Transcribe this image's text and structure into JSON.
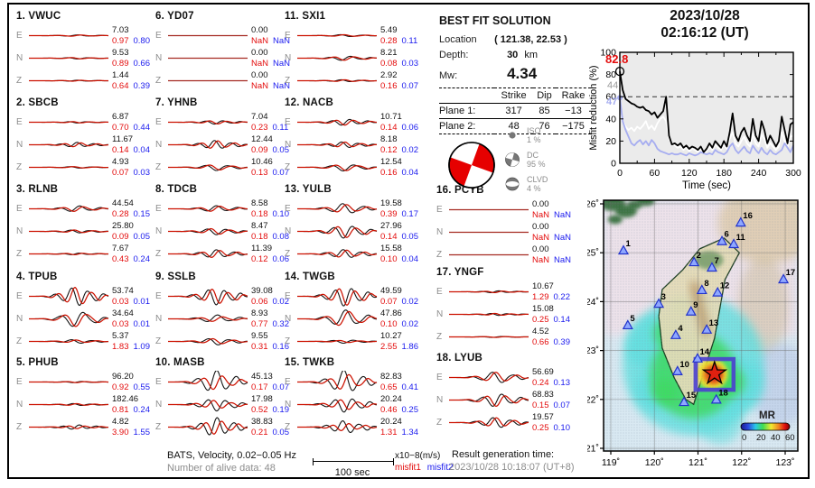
{
  "header": {
    "date": "2023/10/28",
    "time": "02:16:12  (UT)"
  },
  "solution": {
    "title": "BEST FIT SOLUTION",
    "location_label": "Location",
    "location_value": "( 121.38,  22.53 )",
    "depth_label": "Depth:",
    "depth_value": "30",
    "depth_unit": "km",
    "mw_label": "Mw:",
    "mw_value": "4.34",
    "table": {
      "headers": [
        "Strike",
        "Dip",
        "Rake"
      ],
      "rows": [
        {
          "label": "Plane 1:",
          "strike": "317",
          "dip": "85",
          "rake": "−13"
        },
        {
          "label": "Plane 2:",
          "strike": "48",
          "dip": "76",
          "rake": "−175"
        }
      ]
    },
    "decomposition": [
      {
        "name": "ISO",
        "pct": "1 %"
      },
      {
        "name": "DC",
        "pct": "95 %"
      },
      {
        "name": "CLVD",
        "pct": "4 %"
      }
    ]
  },
  "stations": [
    {
      "num": "1.",
      "code": "VWUC",
      "components": [
        {
          "c": "E",
          "peak": "7.03",
          "m1": "0.97",
          "m2": "0.80",
          "amp": 0.07,
          "mis": 0.1
        },
        {
          "c": "N",
          "peak": "9.53",
          "m1": "0.89",
          "m2": "0.66",
          "amp": 0.07,
          "mis": 0.1
        },
        {
          "c": "Z",
          "peak": "1.44",
          "m1": "0.64",
          "m2": "0.39",
          "amp": 0.05,
          "mis": 0.1
        }
      ]
    },
    {
      "num": "2.",
      "code": "SBCB",
      "components": [
        {
          "c": "E",
          "peak": "6.87",
          "m1": "0.70",
          "m2": "0.44",
          "amp": 0.07,
          "mis": 0.1
        },
        {
          "c": "N",
          "peak": "11.67",
          "m1": "0.14",
          "m2": "0.04",
          "amp": 0.22,
          "mis": 0.15
        },
        {
          "c": "Z",
          "peak": "4.93",
          "m1": "0.07",
          "m2": "0.03",
          "amp": 0.08,
          "mis": 0.1
        }
      ]
    },
    {
      "num": "3.",
      "code": "RLNB",
      "components": [
        {
          "c": "E",
          "peak": "44.54",
          "m1": "0.28",
          "m2": "0.15",
          "amp": 0.28,
          "mis": 0.15
        },
        {
          "c": "N",
          "peak": "25.80",
          "m1": "0.09",
          "m2": "0.05",
          "amp": 0.15,
          "mis": 0.1
        },
        {
          "c": "Z",
          "peak": "7.67",
          "m1": "0.43",
          "m2": "0.24",
          "amp": 0.08,
          "mis": 0.1
        }
      ]
    },
    {
      "num": "4.",
      "code": "TPUB",
      "components": [
        {
          "c": "E",
          "peak": "53.74",
          "m1": "0.03",
          "m2": "0.01",
          "amp": 0.95,
          "mis": 0.05
        },
        {
          "c": "N",
          "peak": "34.64",
          "m1": "0.03",
          "m2": "0.01",
          "amp": 0.8,
          "mis": 0.08
        },
        {
          "c": "Z",
          "peak": "5.37",
          "m1": "1.83",
          "m2": "1.09",
          "amp": 0.15,
          "mis": 0.4
        }
      ]
    },
    {
      "num": "5.",
      "code": "PHUB",
      "components": [
        {
          "c": "E",
          "peak": "96.20",
          "m1": "0.92",
          "m2": "0.55",
          "amp": 0.06,
          "mis": 0.1
        },
        {
          "c": "N",
          "peak": "182.46",
          "m1": "0.81",
          "m2": "0.24",
          "amp": 0.1,
          "mis": 0.1
        },
        {
          "c": "Z",
          "peak": "4.82",
          "m1": "3.90",
          "m2": "1.55",
          "amp": 0.16,
          "mis": 0.5
        }
      ]
    },
    {
      "num": "6.",
      "code": "YD07",
      "components": [
        {
          "c": "E",
          "peak": "0.00",
          "m1": "NaN",
          "m2": "NaN",
          "amp": 0,
          "mis": 0
        },
        {
          "c": "N",
          "peak": "0.00",
          "m1": "NaN",
          "m2": "NaN",
          "amp": 0,
          "mis": 0
        },
        {
          "c": "Z",
          "peak": "0.00",
          "m1": "NaN",
          "m2": "NaN",
          "amp": 0,
          "mis": 0
        }
      ]
    },
    {
      "num": "7.",
      "code": "YHNB",
      "components": [
        {
          "c": "E",
          "peak": "7.04",
          "m1": "0.23",
          "m2": "0.11",
          "amp": 0.18,
          "mis": 0.1
        },
        {
          "c": "N",
          "peak": "12.44",
          "m1": "0.09",
          "m2": "0.05",
          "amp": 0.42,
          "mis": 0.08
        },
        {
          "c": "Z",
          "peak": "10.46",
          "m1": "0.13",
          "m2": "0.07",
          "amp": 0.3,
          "mis": 0.12
        }
      ]
    },
    {
      "num": "8.",
      "code": "TDCB",
      "components": [
        {
          "c": "E",
          "peak": "8.58",
          "m1": "0.18",
          "m2": "0.10",
          "amp": 0.3,
          "mis": 0.1
        },
        {
          "c": "N",
          "peak": "8.47",
          "m1": "0.18",
          "m2": "0.08",
          "amp": 0.32,
          "mis": 0.1
        },
        {
          "c": "Z",
          "peak": "11.39",
          "m1": "0.12",
          "m2": "0.06",
          "amp": 0.4,
          "mis": 0.1
        }
      ]
    },
    {
      "num": "9.",
      "code": "SSLB",
      "components": [
        {
          "c": "E",
          "peak": "39.08",
          "m1": "0.06",
          "m2": "0.02",
          "amp": 0.8,
          "mis": 0.12
        },
        {
          "c": "N",
          "peak": "8.93",
          "m1": "0.77",
          "m2": "0.32",
          "amp": 0.28,
          "mis": 0.5
        },
        {
          "c": "Z",
          "peak": "9.55",
          "m1": "0.31",
          "m2": "0.16",
          "amp": 0.3,
          "mis": 0.25
        }
      ]
    },
    {
      "num": "10.",
      "code": "MASB",
      "components": [
        {
          "c": "E",
          "peak": "45.13",
          "m1": "0.17",
          "m2": "0.07",
          "amp": 0.8,
          "mis": 0.55
        },
        {
          "c": "N",
          "peak": "17.98",
          "m1": "0.52",
          "m2": "0.19",
          "amp": 0.45,
          "mis": 0.5
        },
        {
          "c": "Z",
          "peak": "38.83",
          "m1": "0.21",
          "m2": "0.05",
          "amp": 0.75,
          "mis": 0.35
        }
      ]
    },
    {
      "num": "11.",
      "code": "SXI1",
      "components": [
        {
          "c": "E",
          "peak": "5.49",
          "m1": "0.28",
          "m2": "0.11",
          "amp": 0.1,
          "mis": 0.15
        },
        {
          "c": "N",
          "peak": "8.21",
          "m1": "0.08",
          "m2": "0.03",
          "amp": 0.22,
          "mis": 0.1
        },
        {
          "c": "Z",
          "peak": "2.92",
          "m1": "0.16",
          "m2": "0.07",
          "amp": 0.1,
          "mis": 0.1
        }
      ]
    },
    {
      "num": "12.",
      "code": "NACB",
      "components": [
        {
          "c": "E",
          "peak": "10.71",
          "m1": "0.14",
          "m2": "0.06",
          "amp": 0.3,
          "mis": 0.1
        },
        {
          "c": "N",
          "peak": "8.18",
          "m1": "0.12",
          "m2": "0.02",
          "amp": 0.28,
          "mis": 0.1
        },
        {
          "c": "Z",
          "peak": "12.54",
          "m1": "0.16",
          "m2": "0.04",
          "amp": 0.35,
          "mis": 0.1
        }
      ]
    },
    {
      "num": "13.",
      "code": "YULB",
      "components": [
        {
          "c": "E",
          "peak": "19.58",
          "m1": "0.39",
          "m2": "0.17",
          "amp": 0.45,
          "mis": 0.25
        },
        {
          "c": "N",
          "peak": "27.96",
          "m1": "0.14",
          "m2": "0.05",
          "amp": 0.65,
          "mis": 0.1
        },
        {
          "c": "Z",
          "peak": "15.58",
          "m1": "0.10",
          "m2": "0.04",
          "amp": 0.4,
          "mis": 0.15
        }
      ]
    },
    {
      "num": "14.",
      "code": "TWGB",
      "components": [
        {
          "c": "E",
          "peak": "49.59",
          "m1": "0.07",
          "m2": "0.02",
          "amp": 0.95,
          "mis": 0.08
        },
        {
          "c": "N",
          "peak": "47.86",
          "m1": "0.10",
          "m2": "0.02",
          "amp": 0.85,
          "mis": 0.1
        },
        {
          "c": "Z",
          "peak": "10.27",
          "m1": "2.55",
          "m2": "1.86",
          "amp": 0.12,
          "mis": 0.6
        }
      ]
    },
    {
      "num": "15.",
      "code": "TWKB",
      "components": [
        {
          "c": "E",
          "peak": "82.83",
          "m1": "0.65",
          "m2": "0.41",
          "amp": 0.85,
          "mis": 0.5
        },
        {
          "c": "N",
          "peak": "20.24",
          "m1": "0.46",
          "m2": "0.25",
          "amp": 0.55,
          "mis": 0.45
        },
        {
          "c": "Z",
          "peak": "20.24",
          "m1": "1.31",
          "m2": "1.34",
          "amp": 0.4,
          "mis": 0.7
        }
      ]
    },
    {
      "num": "16.",
      "code": "PCYB",
      "components": [
        {
          "c": "E",
          "peak": "0.00",
          "m1": "NaN",
          "m2": "NaN",
          "amp": 0,
          "mis": 0
        },
        {
          "c": "N",
          "peak": "0.00",
          "m1": "NaN",
          "m2": "NaN",
          "amp": 0,
          "mis": 0
        },
        {
          "c": "Z",
          "peak": "0.00",
          "m1": "NaN",
          "m2": "NaN",
          "amp": 0,
          "mis": 0
        }
      ]
    },
    {
      "num": "17.",
      "code": "YNGF",
      "components": [
        {
          "c": "E",
          "peak": "10.67",
          "m1": "1.29",
          "m2": "0.22",
          "amp": 0.09,
          "mis": 0.2
        },
        {
          "c": "N",
          "peak": "15.08",
          "m1": "0.25",
          "m2": "0.14",
          "amp": 0.1,
          "mis": 0.15
        },
        {
          "c": "Z",
          "peak": "4.52",
          "m1": "0.66",
          "m2": "0.39",
          "amp": 0.05,
          "mis": 0.15
        }
      ]
    },
    {
      "num": "18.",
      "code": "LYUB",
      "components": [
        {
          "c": "E",
          "peak": "56.69",
          "m1": "0.24",
          "m2": "0.13",
          "amp": 0.55,
          "mis": 0.12
        },
        {
          "c": "N",
          "peak": "68.83",
          "m1": "0.15",
          "m2": "0.07",
          "amp": 0.65,
          "mis": 0.1
        },
        {
          "c": "Z",
          "peak": "19.57",
          "m1": "0.25",
          "m2": "0.10",
          "amp": 0.5,
          "mis": 0.12
        }
      ]
    }
  ],
  "footer": {
    "filter_line": "BATS, Velocity, 0.02−0.05 Hz",
    "alive_line": "Number of alive data: 48",
    "scalebar_label": "100 sec",
    "unit_label": "x10−8(m/s)",
    "misfit1_label": "misfit1",
    "misfit2_label": "misfit2",
    "result_time_label": "Result generation time:",
    "result_time_value": "2023/10/28 10:18:07 (UT+8)"
  },
  "chart_data": [
    {
      "type": "line",
      "title": "Misfit reduction vs time",
      "xlabel": "Time (sec)",
      "ylabel": "Misfit reduction (%)",
      "xlim": [
        0,
        300
      ],
      "ylim": [
        0,
        100
      ],
      "x_ticks": [
        0,
        60,
        120,
        180,
        240,
        300
      ],
      "y_ticks": [
        0,
        20,
        40,
        60,
        80,
        100
      ],
      "dashed_line_y": 60,
      "x_step": 5,
      "annotations": [
        {
          "text": "82.8",
          "color": "#e30b0b"
        },
        {
          "text": "44",
          "color": "#9a9a9a"
        },
        {
          "text": "47",
          "color": "#a6adf0"
        }
      ],
      "series": [
        {
          "name": "white",
          "color": "#ffffff",
          "values": [
            44,
            38,
            33,
            30,
            32,
            29,
            33,
            31,
            34,
            38,
            31,
            34,
            30,
            36,
            40,
            42,
            38,
            22,
            18,
            16,
            14,
            15,
            12,
            14,
            11,
            13,
            12,
            10,
            13,
            9,
            11,
            15,
            12,
            17,
            14,
            12,
            17,
            13,
            22,
            28,
            18,
            15,
            20,
            24,
            18,
            15,
            26,
            18,
            15,
            26,
            22,
            14,
            18,
            15,
            12,
            15,
            28,
            20,
            14,
            24,
            25
          ]
        },
        {
          "name": "lavender",
          "color": "#a6adf0",
          "values": [
            59,
            38,
            30,
            24,
            18,
            16,
            19,
            21,
            17,
            20,
            16,
            21,
            18,
            13,
            11,
            10,
            9,
            8,
            9,
            8,
            8,
            9,
            8,
            7,
            9,
            8,
            7,
            8,
            10,
            9,
            8,
            9,
            8,
            12,
            10,
            9,
            8,
            10,
            15,
            18,
            12,
            9,
            12,
            15,
            11,
            9,
            16,
            12,
            9,
            14,
            10,
            8,
            12,
            9,
            8,
            10,
            12,
            18,
            14,
            10,
            16
          ]
        },
        {
          "name": "final",
          "color": "#000000",
          "values": [
            82.8,
            66,
            58,
            56,
            54,
            53,
            51,
            50,
            51,
            48,
            47,
            44,
            46,
            41,
            44,
            47,
            60,
            25,
            17,
            18,
            16,
            18,
            14,
            16,
            13,
            15,
            14,
            12,
            15,
            10,
            13,
            18,
            14,
            20,
            17,
            14,
            20,
            15,
            28,
            45,
            25,
            20,
            28,
            32,
            25,
            20,
            40,
            25,
            20,
            38,
            30,
            18,
            25,
            20,
            15,
            20,
            42,
            30,
            18,
            35,
            37
          ]
        }
      ],
      "start_marker": {
        "t": 0,
        "value": 82.8
      },
      "lavender_marker": {
        "t": 0,
        "value": 59
      }
    },
    {
      "type": "map",
      "region": {
        "lon": [
          119,
          123
        ],
        "lat": [
          21,
          26
        ]
      },
      "lon_ticks": [
        "119˚",
        "120˚",
        "121˚",
        "122˚",
        "123˚"
      ],
      "lat_ticks": [
        "26˚",
        "25˚",
        "24˚",
        "23˚",
        "22˚",
        "21˚"
      ],
      "epicenter": {
        "lon": 121.38,
        "lat": 22.53
      },
      "stations": [
        {
          "n": "1",
          "lon": 119.29,
          "lat": 25.04
        },
        {
          "n": "2",
          "lon": 120.91,
          "lat": 24.8
        },
        {
          "n": "3",
          "lon": 120.1,
          "lat": 23.95
        },
        {
          "n": "4",
          "lon": 120.49,
          "lat": 23.31
        },
        {
          "n": "5",
          "lon": 119.39,
          "lat": 23.51
        },
        {
          "n": "6",
          "lon": 121.55,
          "lat": 25.23
        },
        {
          "n": "7",
          "lon": 121.32,
          "lat": 24.69
        },
        {
          "n": "8",
          "lon": 121.09,
          "lat": 24.23
        },
        {
          "n": "9",
          "lon": 120.84,
          "lat": 23.79
        },
        {
          "n": "10",
          "lon": 120.53,
          "lat": 22.57
        },
        {
          "n": "11",
          "lon": 121.82,
          "lat": 25.17
        },
        {
          "n": "12",
          "lon": 121.45,
          "lat": 24.18
        },
        {
          "n": "13",
          "lon": 121.2,
          "lat": 23.42
        },
        {
          "n": "14",
          "lon": 120.99,
          "lat": 22.83
        },
        {
          "n": "15",
          "lon": 120.68,
          "lat": 21.94
        },
        {
          "n": "16",
          "lon": 121.98,
          "lat": 25.61
        },
        {
          "n": "17",
          "lon": 122.96,
          "lat": 24.45
        },
        {
          "n": "18",
          "lon": 121.42,
          "lat": 21.99
        }
      ],
      "colorbar": {
        "label": "MR",
        "ticks": [
          "0",
          "20",
          "40",
          "60"
        ]
      }
    }
  ]
}
